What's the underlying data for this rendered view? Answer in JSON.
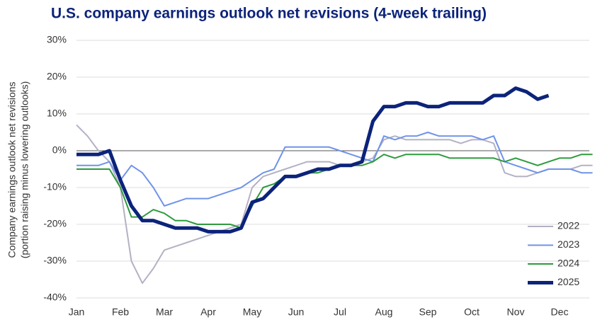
{
  "chart_data": {
    "type": "line",
    "title": "U.S. company earnings outlook net revisions (4-week trailing)",
    "ylabel": [
      "Company earnings outlook net revisions",
      "(portion raising minus lowering outlooks)"
    ],
    "categories": [
      "Jan",
      null,
      null,
      null,
      "Feb",
      null,
      null,
      null,
      "Mar",
      null,
      null,
      null,
      "Apr",
      null,
      null,
      null,
      "May",
      null,
      null,
      null,
      "Jun",
      null,
      null,
      null,
      "Jul",
      null,
      null,
      null,
      "Aug",
      null,
      null,
      null,
      "Sep",
      null,
      null,
      null,
      "Oct",
      null,
      null,
      null,
      "Nov",
      null,
      null,
      null,
      "Dec",
      null,
      null,
      null
    ],
    "ylim": [
      -40,
      30
    ],
    "yticks": [
      {
        "value": -40,
        "label": "-40%"
      },
      {
        "value": -30,
        "label": "-30%"
      },
      {
        "value": -20,
        "label": "-20%"
      },
      {
        "value": -10,
        "label": "-10%"
      },
      {
        "value": 0,
        "label": "0%"
      },
      {
        "value": 10,
        "label": "10%"
      },
      {
        "value": 20,
        "label": "20%"
      },
      {
        "value": 30,
        "label": "30%"
      }
    ],
    "grid": true,
    "legend": "lower right",
    "series": [
      {
        "name": "2022",
        "color": "#b3b1c4",
        "width": 2,
        "values": [
          7,
          4,
          0,
          -3,
          -10,
          -30,
          -36,
          -32,
          -27,
          -26,
          -25,
          -24,
          -23,
          -22,
          -21,
          -20,
          -10,
          -7,
          -6,
          -5,
          -4,
          -3,
          -3,
          -3,
          -4,
          -4,
          -3,
          -2,
          3,
          4,
          3,
          3,
          3,
          3,
          3,
          2,
          3,
          3,
          2,
          -6,
          -7,
          -7,
          -6,
          -5,
          -5,
          -5,
          -4,
          -4
        ]
      },
      {
        "name": "2023",
        "color": "#6f93ea",
        "width": 2,
        "values": [
          -4,
          -4,
          -4,
          -3,
          -8,
          -4,
          -6,
          -10,
          -15,
          -14,
          -13,
          -13,
          -13,
          -12,
          -11,
          -10,
          -8,
          -6,
          -5,
          1,
          1,
          1,
          1,
          1,
          0,
          -1,
          -2,
          -3,
          4,
          3,
          4,
          4,
          5,
          4,
          4,
          4,
          4,
          3,
          4,
          -3,
          -4,
          -5,
          -6,
          -5,
          -5,
          -5,
          -6,
          -6
        ]
      },
      {
        "name": "2024",
        "color": "#2e9a3e",
        "width": 2,
        "values": [
          -5,
          -5,
          -5,
          -5,
          -10,
          -18,
          -18,
          -16,
          -17,
          -19,
          -19,
          -20,
          -20,
          -20,
          -20,
          -21,
          -15,
          -10,
          -9,
          -7,
          -7,
          -6,
          -6,
          -5,
          -4,
          -4,
          -4,
          -3,
          -1,
          -2,
          -1,
          -1,
          -1,
          -1,
          -2,
          -2,
          -2,
          -2,
          -2,
          -3,
          -2,
          -3,
          -4,
          -3,
          -2,
          -2,
          -1,
          -1
        ]
      },
      {
        "name": "2025",
        "color": "#0c237a",
        "width": 5,
        "values": [
          -1,
          -1,
          -1,
          0,
          -8,
          -15,
          -19,
          -19,
          -20,
          -21,
          -21,
          -21,
          -22,
          -22,
          -22,
          -21,
          -14,
          -13,
          -10,
          -7,
          -7,
          -6,
          -5,
          -5,
          -4,
          -4,
          -3,
          8,
          12,
          12,
          13,
          13,
          12,
          12,
          13,
          13,
          13,
          13,
          15,
          15,
          17,
          16,
          14,
          15,
          null,
          null,
          null,
          null
        ]
      }
    ]
  }
}
